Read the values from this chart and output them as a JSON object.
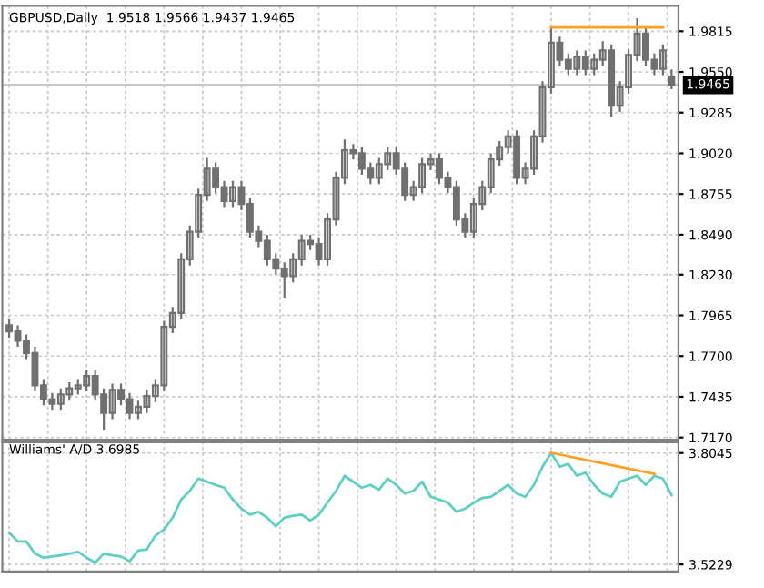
{
  "chart_data": [
    {
      "type": "candlestick",
      "title": "GBPUSD,Daily  1.9518 1.9566 1.9437 1.9465",
      "color": "#707070",
      "categories": [
        null,
        null,
        null,
        null,
        null,
        null,
        null,
        null,
        null,
        null,
        null,
        null,
        null,
        null,
        null,
        null,
        null,
        null,
        null,
        null,
        null,
        null,
        null,
        null,
        null,
        null,
        null,
        null,
        null,
        null,
        null,
        null,
        null,
        null,
        null,
        null,
        null,
        null,
        null,
        null,
        null,
        null,
        null,
        null,
        null,
        null,
        null,
        null,
        null,
        null,
        null,
        null,
        null,
        null,
        null,
        null,
        null,
        null,
        null,
        null,
        null,
        null,
        null,
        null,
        null,
        null,
        null,
        null,
        null,
        null,
        null,
        null,
        null,
        null,
        null,
        null,
        null,
        null
      ],
      "ohlc": [
        [
          1.79,
          1.794,
          1.782,
          1.786
        ],
        [
          1.786,
          1.79,
          1.776,
          1.78
        ],
        [
          1.78,
          1.784,
          1.768,
          1.772
        ],
        [
          1.772,
          1.776,
          1.747,
          1.751
        ],
        [
          1.751,
          1.755,
          1.738,
          1.742
        ],
        [
          1.742,
          1.746,
          1.735,
          1.739
        ],
        [
          1.739,
          1.749,
          1.735,
          1.745
        ],
        [
          1.745,
          1.753,
          1.741,
          1.749
        ],
        [
          1.749,
          1.755,
          1.745,
          1.751
        ],
        [
          1.751,
          1.761,
          1.747,
          1.757
        ],
        [
          1.757,
          1.761,
          1.741,
          1.745
        ],
        [
          1.745,
          1.749,
          1.722,
          1.733
        ],
        [
          1.733,
          1.752,
          1.729,
          1.748
        ],
        [
          1.748,
          1.752,
          1.738,
          1.742
        ],
        [
          1.742,
          1.746,
          1.729,
          1.733
        ],
        [
          1.733,
          1.741,
          1.729,
          1.737
        ],
        [
          1.737,
          1.748,
          1.733,
          1.744
        ],
        [
          1.744,
          1.755,
          1.74,
          1.751
        ],
        [
          1.751,
          1.793,
          1.747,
          1.789
        ],
        [
          1.789,
          1.802,
          1.785,
          1.798
        ],
        [
          1.798,
          1.837,
          1.794,
          1.833
        ],
        [
          1.833,
          1.855,
          1.829,
          1.851
        ],
        [
          1.851,
          1.879,
          1.847,
          1.875
        ],
        [
          1.875,
          1.899,
          1.871,
          1.892
        ],
        [
          1.892,
          1.896,
          1.876,
          1.88
        ],
        [
          1.88,
          1.884,
          1.867,
          1.871
        ],
        [
          1.871,
          1.884,
          1.867,
          1.88
        ],
        [
          1.88,
          1.884,
          1.865,
          1.869
        ],
        [
          1.869,
          1.873,
          1.847,
          1.851
        ],
        [
          1.851,
          1.855,
          1.841,
          1.845
        ],
        [
          1.845,
          1.849,
          1.829,
          1.833
        ],
        [
          1.833,
          1.837,
          1.823,
          1.827
        ],
        [
          1.827,
          1.831,
          1.808,
          1.822
        ],
        [
          1.822,
          1.837,
          1.818,
          1.833
        ],
        [
          1.833,
          1.849,
          1.829,
          1.845
        ],
        [
          1.845,
          1.849,
          1.839,
          1.843
        ],
        [
          1.843,
          1.847,
          1.829,
          1.833
        ],
        [
          1.833,
          1.863,
          1.829,
          1.859
        ],
        [
          1.859,
          1.89,
          1.855,
          1.886
        ],
        [
          1.886,
          1.911,
          1.882,
          1.904
        ],
        [
          1.904,
          1.908,
          1.898,
          1.902
        ],
        [
          1.902,
          1.906,
          1.888,
          1.892
        ],
        [
          1.892,
          1.896,
          1.882,
          1.886
        ],
        [
          1.886,
          1.899,
          1.882,
          1.895
        ],
        [
          1.895,
          1.906,
          1.891,
          1.902
        ],
        [
          1.902,
          1.906,
          1.888,
          1.892
        ],
        [
          1.892,
          1.896,
          1.871,
          1.875
        ],
        [
          1.875,
          1.884,
          1.871,
          1.88
        ],
        [
          1.88,
          1.899,
          1.876,
          1.895
        ],
        [
          1.895,
          1.902,
          1.891,
          1.898
        ],
        [
          1.898,
          1.902,
          1.882,
          1.886
        ],
        [
          1.886,
          1.89,
          1.876,
          1.88
        ],
        [
          1.88,
          1.884,
          1.855,
          1.859
        ],
        [
          1.859,
          1.863,
          1.847,
          1.851
        ],
        [
          1.851,
          1.873,
          1.847,
          1.869
        ],
        [
          1.869,
          1.884,
          1.865,
          1.88
        ],
        [
          1.88,
          1.902,
          1.876,
          1.898
        ],
        [
          1.898,
          1.91,
          1.894,
          1.906
        ],
        [
          1.906,
          1.917,
          1.902,
          1.913
        ],
        [
          1.913,
          1.917,
          1.882,
          1.886
        ],
        [
          1.886,
          1.896,
          1.882,
          1.892
        ],
        [
          1.892,
          1.917,
          1.888,
          1.913
        ],
        [
          1.913,
          1.949,
          1.909,
          1.945
        ],
        [
          1.945,
          1.984,
          1.941,
          1.974
        ],
        [
          1.974,
          1.978,
          1.959,
          1.963
        ],
        [
          1.963,
          1.967,
          1.953,
          1.957
        ],
        [
          1.957,
          1.969,
          1.953,
          1.965
        ],
        [
          1.965,
          1.969,
          1.953,
          1.957
        ],
        [
          1.957,
          1.967,
          1.953,
          1.963
        ],
        [
          1.963,
          1.975,
          1.959,
          1.969
        ],
        [
          1.969,
          1.973,
          1.926,
          1.933
        ],
        [
          1.933,
          1.949,
          1.929,
          1.945
        ],
        [
          1.945,
          1.97,
          1.941,
          1.966
        ],
        [
          1.966,
          1.99,
          1.962,
          1.98
        ],
        [
          1.98,
          1.984,
          1.959,
          1.963
        ],
        [
          1.963,
          1.967,
          1.953,
          1.957
        ],
        [
          1.957,
          1.973,
          1.953,
          1.969
        ],
        [
          1.9518,
          1.9566,
          1.9437,
          1.9465
        ]
      ],
      "series": [
        {
          "type": "line",
          "color": "#ffa020",
          "values": [
            null,
            null,
            null,
            null,
            null,
            null,
            null,
            null,
            null,
            null,
            null,
            null,
            null,
            null,
            null,
            null,
            null,
            null,
            null,
            null,
            null,
            null,
            null,
            null,
            null,
            null,
            null,
            null,
            null,
            null,
            null,
            null,
            null,
            null,
            null,
            null,
            null,
            null,
            null,
            null,
            null,
            null,
            null,
            null,
            null,
            null,
            null,
            null,
            null,
            null,
            null,
            null,
            null,
            null,
            null,
            null,
            null,
            null,
            null,
            null,
            null,
            null,
            null,
            1.984,
            null,
            null,
            null,
            null,
            null,
            null,
            null,
            null,
            null,
            null,
            null,
            null,
            1.984,
            null
          ]
        }
      ],
      "ref_lines": [
        {
          "axis": "y",
          "value": 1.9465,
          "label": "1.9465",
          "color": "#c8c8c8"
        }
      ],
      "ylim": [
        1.7155,
        1.998
      ],
      "yticks": [
        1.9815,
        {
          "value": 1.955,
          "label": "1.9550"
        },
        1.9285,
        {
          "value": 1.902,
          "label": "1.9020"
        },
        1.8755,
        {
          "value": 1.849,
          "label": "1.8490"
        },
        {
          "value": 1.823,
          "label": "1.8230"
        },
        1.7965,
        {
          "value": 1.77,
          "label": "1.7700"
        },
        1.7435,
        {
          "value": 1.717,
          "label": "1.7170"
        }
      ],
      "tick_labels": "y",
      "grid": true
    },
    {
      "type": "line",
      "title": "Williams' A/D 3.6985",
      "categories": [
        null,
        null,
        null,
        null,
        null,
        null,
        null,
        null,
        null,
        null,
        null,
        null,
        null,
        null,
        null,
        null,
        null,
        null,
        null,
        null,
        null,
        null,
        null,
        null,
        null,
        null,
        null,
        null,
        null,
        null,
        null,
        null,
        null,
        null,
        null,
        null,
        null,
        null,
        null,
        null,
        null,
        null,
        null,
        null,
        null,
        null,
        null,
        null,
        null,
        null,
        null,
        null,
        null,
        null,
        null,
        null,
        null,
        null,
        null,
        null,
        null,
        null,
        null,
        null,
        null,
        null,
        null,
        null,
        null,
        null,
        null,
        null,
        null,
        null,
        null,
        null,
        null,
        null
      ],
      "series": [
        {
          "color": "#5fcfc4",
          "values": [
            3.603,
            3.581,
            3.581,
            3.55,
            3.54,
            3.543,
            3.546,
            3.55,
            3.555,
            3.54,
            3.528,
            3.55,
            3.546,
            3.543,
            3.531,
            3.558,
            3.561,
            3.596,
            3.611,
            3.641,
            3.687,
            3.709,
            3.74,
            3.732,
            3.724,
            3.717,
            3.687,
            3.664,
            3.649,
            3.656,
            3.641,
            3.619,
            3.641,
            3.646,
            3.649,
            3.634,
            3.649,
            3.679,
            3.709,
            3.747,
            3.732,
            3.717,
            3.724,
            3.712,
            3.74,
            3.724,
            3.702,
            3.709,
            3.732,
            3.694,
            3.687,
            3.679,
            3.656,
            3.664,
            3.679,
            3.691,
            3.694,
            3.709,
            3.724,
            3.702,
            3.694,
            3.724,
            3.77,
            3.805,
            3.77,
            3.777,
            3.747,
            3.755,
            3.724,
            3.702,
            3.694,
            3.732,
            3.74,
            3.747,
            3.724,
            3.747,
            3.74,
            3.6985
          ]
        },
        {
          "color": "#ffa020",
          "values": [
            null,
            null,
            null,
            null,
            null,
            null,
            null,
            null,
            null,
            null,
            null,
            null,
            null,
            null,
            null,
            null,
            null,
            null,
            null,
            null,
            null,
            null,
            null,
            null,
            null,
            null,
            null,
            null,
            null,
            null,
            null,
            null,
            null,
            null,
            null,
            null,
            null,
            null,
            null,
            null,
            null,
            null,
            null,
            null,
            null,
            null,
            null,
            null,
            null,
            null,
            null,
            null,
            null,
            null,
            null,
            null,
            null,
            null,
            null,
            null,
            null,
            null,
            null,
            3.805,
            null,
            null,
            null,
            null,
            null,
            null,
            null,
            null,
            null,
            null,
            null,
            3.752,
            null,
            null
          ]
        }
      ],
      "ylim": [
        3.505,
        3.832
      ],
      "yticks": [
        3.8045,
        3.5229
      ],
      "tick_labels": "y",
      "grid": true,
      "line_style": "solid"
    }
  ]
}
